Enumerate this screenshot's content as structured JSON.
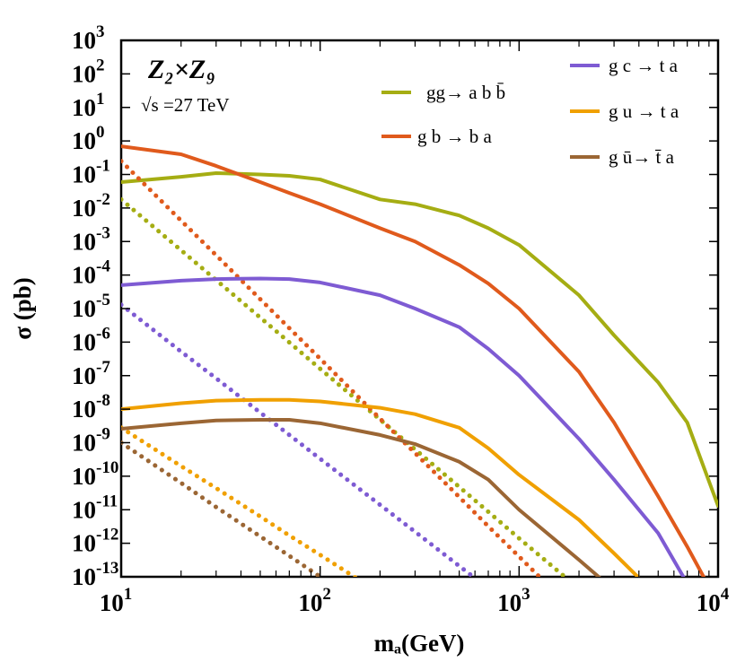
{
  "chart_data": {
    "type": "line",
    "title": "Z₂×Z₉",
    "annotation": "√s =27 TeV",
    "xlabel": "mₐ(GeV)",
    "ylabel": "σ (pb)",
    "xscale": "log",
    "yscale": "log",
    "xlim": [
      10,
      10000
    ],
    "ylim": [
      1e-13,
      1000
    ],
    "xticks": [
      {
        "value": 10,
        "label": "10",
        "exponent": 1
      },
      {
        "value": 100,
        "label": "10",
        "exponent": 2
      },
      {
        "value": 1000,
        "label": "10",
        "exponent": 3
      },
      {
        "value": 10000,
        "label": "10",
        "exponent": 4
      }
    ],
    "xminorticks": [
      20,
      30,
      40,
      50,
      60,
      70,
      80,
      90,
      200,
      300,
      400,
      500,
      600,
      700,
      800,
      900,
      2000,
      3000,
      4000,
      5000,
      6000,
      7000,
      8000,
      9000
    ],
    "yticks": [
      {
        "value": 1e-13,
        "label": "10",
        "exponent": -13
      },
      {
        "value": 1e-12,
        "label": "10",
        "exponent": -12
      },
      {
        "value": 1e-11,
        "label": "10",
        "exponent": -11
      },
      {
        "value": 1e-10,
        "label": "10",
        "exponent": -10
      },
      {
        "value": 1e-09,
        "label": "10",
        "exponent": -9
      },
      {
        "value": 1e-08,
        "label": "10",
        "exponent": -8
      },
      {
        "value": 1e-07,
        "label": "10",
        "exponent": -7
      },
      {
        "value": 1e-06,
        "label": "10",
        "exponent": -6
      },
      {
        "value": 1e-05,
        "label": "10",
        "exponent": -5
      },
      {
        "value": 0.0001,
        "label": "10",
        "exponent": -4
      },
      {
        "value": 0.001,
        "label": "10",
        "exponent": -3
      },
      {
        "value": 0.01,
        "label": "10",
        "exponent": -2
      },
      {
        "value": 0.1,
        "label": "10",
        "exponent": -1
      },
      {
        "value": 1,
        "label": "10",
        "exponent": 0
      },
      {
        "value": 10,
        "label": "10",
        "exponent": 1
      },
      {
        "value": 100,
        "label": "10",
        "exponent": 2
      },
      {
        "value": 1000,
        "label": "10",
        "exponent": 3
      }
    ],
    "x": [
      10,
      20,
      30,
      50,
      70,
      100,
      200,
      300,
      500,
      700,
      1000,
      2000,
      3000,
      5000,
      7000,
      10000
    ],
    "series": [
      {
        "name": "gg→ a b b̄",
        "color": "#a5ad13",
        "values": [
          0.059,
          0.085,
          0.11,
          0.1,
          0.091,
          0.071,
          0.018,
          0.013,
          0.006,
          0.0025,
          0.00079,
          2.5e-05,
          1.6e-06,
          6.3e-08,
          4e-09,
          1.3e-11
        ],
        "dotted_values": [
          0.018,
          0.00055,
          7.1e-05,
          5.4e-06,
          9.8e-07,
          1.6e-07,
          4.9e-09,
          6.3e-10,
          4.8e-11,
          8.7e-12,
          1.4e-12,
          4.4e-14,
          null,
          null,
          null,
          null
        ]
      },
      {
        "name": "g b → b a",
        "color": "#e05a1c",
        "values": [
          0.69,
          0.4,
          0.18,
          0.059,
          0.028,
          0.013,
          0.0025,
          0.001,
          0.0002,
          5.6e-05,
          1e-05,
          1.3e-07,
          4e-09,
          2.5e-11,
          7.9e-13,
          1.6e-14
        ],
        "dotted_values": [
          0.25,
          0.0042,
          0.00039,
          1.9e-05,
          2.6e-06,
          3.2e-07,
          5.2e-09,
          4.9e-10,
          2.4e-11,
          3.2e-12,
          4e-13,
          6.6e-15,
          null,
          null,
          null,
          null
        ]
      },
      {
        "name": "g c → t a",
        "color": "#7e5bd3",
        "values": [
          5e-05,
          6.8e-05,
          7.6e-05,
          7.9e-05,
          7.6e-05,
          6e-05,
          2.5e-05,
          1e-05,
          2.8e-06,
          6.3e-07,
          1e-07,
          1.3e-09,
          7.9e-11,
          2e-12,
          6.3e-14,
          null
        ],
        "dotted_values": [
          1.3e-05,
          5.2e-07,
          8.3e-08,
          7.9e-09,
          1.7e-09,
          3.3e-10,
          1.4e-11,
          2.2e-12,
          2.1e-13,
          4.5e-14,
          null,
          null,
          null,
          null,
          null,
          null
        ]
      },
      {
        "name": "g u → t a",
        "color": "#f0a000",
        "values": [
          1e-08,
          1.5e-08,
          1.8e-08,
          1.9e-08,
          1.9e-08,
          1.7e-08,
          1.1e-08,
          7.1e-09,
          2.8e-09,
          6.8e-10,
          1.1e-10,
          5e-12,
          5e-13,
          2.5e-14,
          null,
          null
        ],
        "dotted_values": [
          2.8e-09,
          2e-10,
          4.4e-11,
          6.3e-12,
          1.7e-12,
          4.5e-13,
          3.2e-14,
          null,
          null,
          null,
          null,
          null,
          null,
          null,
          null,
          null
        ]
      },
      {
        "name": "g ū→ t̄ a",
        "color": "#9b6634",
        "values": [
          2.6e-09,
          3.8e-09,
          4.6e-09,
          4.8e-09,
          4.8e-09,
          3.8e-09,
          1.7e-09,
          9.1e-10,
          2.7e-10,
          7.9e-11,
          1e-11,
          3.2e-13,
          4e-14,
          null,
          null,
          null
        ],
        "dotted_values": [
          1e-09,
          6.3e-11,
          1.2e-11,
          1.6e-12,
          4.2e-13,
          1e-13,
          6.3e-15,
          null,
          null,
          null,
          null,
          null,
          null,
          null,
          null,
          null
        ]
      }
    ]
  }
}
